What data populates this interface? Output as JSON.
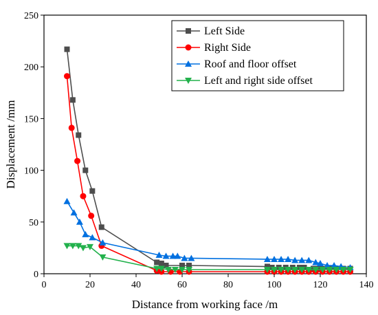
{
  "chart_data": {
    "type": "line",
    "title": "",
    "xlabel": "Distance from working face /m",
    "ylabel": "Displacement /mm",
    "xlim": [
      0,
      140
    ],
    "ylim": [
      0,
      250
    ],
    "xticks": [
      0,
      20,
      40,
      60,
      80,
      100,
      120,
      140
    ],
    "yticks": [
      0,
      50,
      100,
      150,
      200,
      250
    ],
    "legend_position": "top-right",
    "grid": false,
    "series": [
      {
        "name": "Left Side",
        "color": "#4d4d4d",
        "marker": "square",
        "x": [
          10,
          12.5,
          15,
          18,
          21,
          25,
          49,
          51,
          53,
          60,
          63,
          97,
          99,
          102,
          105,
          108,
          111,
          113,
          117,
          119,
          121,
          124,
          127,
          130,
          133
        ],
        "y": [
          217,
          168,
          134,
          100,
          80,
          45,
          11,
          10,
          8,
          8,
          8,
          7,
          6,
          6,
          6,
          6,
          6,
          6,
          5,
          5,
          5,
          5,
          5,
          5,
          5
        ]
      },
      {
        "name": "Right Side",
        "color": "#ff0000",
        "marker": "circle",
        "x": [
          10,
          12,
          14.5,
          17,
          20.5,
          25,
          49,
          51,
          55,
          59,
          63,
          97,
          100,
          103,
          106,
          109,
          112,
          115,
          118,
          121,
          124,
          127,
          130,
          133
        ],
        "y": [
          191,
          141,
          109,
          75,
          56,
          27,
          3,
          2,
          2,
          2,
          2,
          2,
          2,
          2,
          2,
          2,
          2,
          2,
          2,
          2,
          2,
          2,
          2,
          2
        ]
      },
      {
        "name": "Roof and floor offset",
        "color": "#0070e0",
        "marker": "triangle-up",
        "x": [
          10,
          13,
          15.5,
          18,
          21,
          25.5,
          50,
          53,
          56,
          58,
          61,
          64,
          97,
          100,
          103,
          106,
          109,
          112,
          115,
          118,
          120,
          123,
          126,
          129,
          133
        ],
        "y": [
          70,
          59,
          50,
          38,
          35,
          30,
          18,
          17,
          17,
          17,
          15,
          15,
          14,
          14,
          14,
          14,
          13,
          13,
          13,
          11,
          10,
          8,
          8,
          7,
          6
        ]
      },
      {
        "name": "Left and right side offset",
        "color": "#22b14c",
        "marker": "triangle-down",
        "x": [
          10,
          12.5,
          15,
          17,
          20,
          25.5,
          49,
          51,
          54,
          57,
          60,
          63,
          97,
          100,
          103,
          106,
          109,
          112,
          115,
          118,
          121,
          124,
          127,
          130,
          133
        ],
        "y": [
          27,
          27,
          27,
          25,
          26,
          16,
          5,
          5,
          4,
          4,
          4,
          4,
          4,
          4,
          4,
          4,
          4,
          4,
          4,
          4,
          4,
          4,
          4,
          4,
          4
        ]
      }
    ]
  }
}
